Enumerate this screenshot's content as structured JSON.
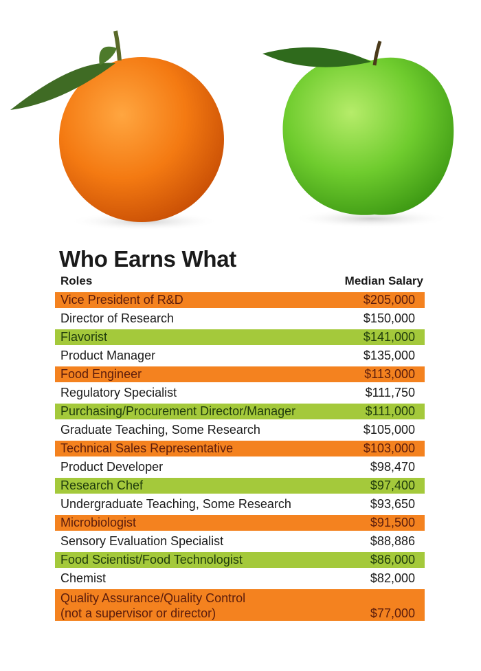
{
  "title": "Who Earns What",
  "headers": {
    "roles": "Roles",
    "salary": "Median Salary"
  },
  "colors": {
    "orange": "#f4821f",
    "green": "#a4c93b"
  },
  "images": [
    "orange-fruit",
    "green-apple"
  ],
  "rows": [
    {
      "role": "Vice President of R&D",
      "salary": "$205,000",
      "color": "orange"
    },
    {
      "role": "Director of Research",
      "salary": "$150,000",
      "color": "white"
    },
    {
      "role": "Flavorist",
      "salary": "$141,000",
      "color": "green"
    },
    {
      "role": "Product Manager",
      "salary": "$135,000",
      "color": "white"
    },
    {
      "role": "Food Engineer",
      "salary": "$113,000",
      "color": "orange"
    },
    {
      "role": "Regulatory Specialist",
      "salary": "$111,750",
      "color": "white"
    },
    {
      "role": "Purchasing/Procurement Director/Manager",
      "salary": "$111,000",
      "color": "green"
    },
    {
      "role": "Graduate Teaching, Some Research",
      "salary": "$105,000",
      "color": "white"
    },
    {
      "role": "Technical Sales Representative",
      "salary": "$103,000",
      "color": "orange"
    },
    {
      "role": "Product Developer",
      "salary": "$98,470",
      "color": "white"
    },
    {
      "role": "Research Chef",
      "salary": "$97,400",
      "color": "green"
    },
    {
      "role": "Undergraduate Teaching, Some Research",
      "salary": "$93,650",
      "color": "white"
    },
    {
      "role": "Microbiologist",
      "salary": "$91,500",
      "color": "orange"
    },
    {
      "role": "Sensory Evaluation Specialist",
      "salary": "$88,886",
      "color": "white"
    },
    {
      "role": "Food Scientist/Food Technologist",
      "salary": "$86,000",
      "color": "green"
    },
    {
      "role": "Chemist",
      "salary": "$82,000",
      "color": "white"
    },
    {
      "role": "Quality Assurance/Quality Control\n(not a supervisor or director)",
      "salary": "$77,000",
      "color": "orange"
    }
  ]
}
